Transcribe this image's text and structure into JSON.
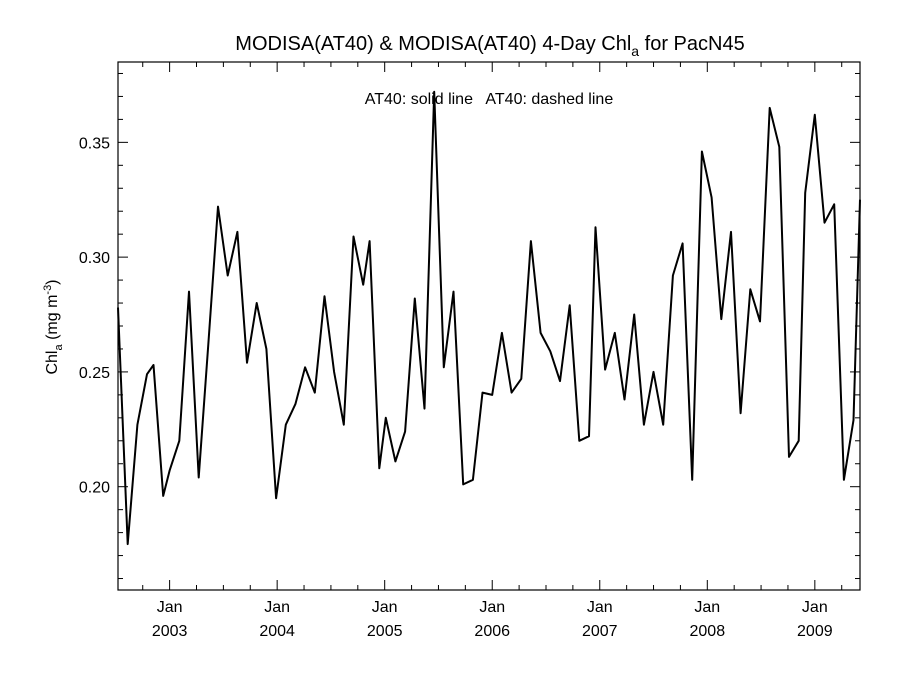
{
  "chart_data": {
    "type": "line",
    "title": {
      "main": "MODISA(AT40) & MODISA(AT40) 4-Day Chl",
      "subscript": "a",
      "suffix": " for PacN45"
    },
    "ylabel": {
      "main": "Chl",
      "subscript": "a",
      "units_prefix": " (mg m",
      "units_superscript": "-3",
      "units_suffix": ")"
    },
    "annotation": "AT40: solid line   AT40: dashed line",
    "xlim": [
      2002.52,
      2009.42
    ],
    "ylim": [
      0.155,
      0.385
    ],
    "yticks": [
      0.2,
      0.25,
      0.3,
      0.35
    ],
    "ytick_labels": [
      "0.20",
      "0.25",
      "0.30",
      "0.35"
    ],
    "xticks": [
      {
        "x": 2003.0,
        "month": "Jan",
        "year": "2003"
      },
      {
        "x": 2004.0,
        "month": "Jan",
        "year": "2004"
      },
      {
        "x": 2005.0,
        "month": "Jan",
        "year": "2005"
      },
      {
        "x": 2006.0,
        "month": "Jan",
        "year": "2006"
      },
      {
        "x": 2007.0,
        "month": "Jan",
        "year": "2007"
      },
      {
        "x": 2008.0,
        "month": "Jan",
        "year": "2008"
      },
      {
        "x": 2009.0,
        "month": "Jan",
        "year": "2009"
      }
    ],
    "grid": false,
    "series": [
      {
        "style": "solid",
        "color": "#000000",
        "x": [
          2002.52,
          2002.61,
          2002.7,
          2002.79,
          2002.85,
          2002.94,
          2003.0,
          2003.09,
          2003.18,
          2003.27,
          2003.36,
          2003.45,
          2003.54,
          2003.63,
          2003.72,
          2003.81,
          2003.9,
          2003.99,
          2004.08,
          2004.17,
          2004.26,
          2004.35,
          2004.44,
          2004.53,
          2004.62,
          2004.71,
          2004.8,
          2004.86,
          2004.95,
          2005.01,
          2005.1,
          2005.19,
          2005.28,
          2005.37,
          2005.46,
          2005.55,
          2005.64,
          2005.73,
          2005.82,
          2005.91,
          2006.0,
          2006.09,
          2006.18,
          2006.27,
          2006.36,
          2006.45,
          2006.54,
          2006.63,
          2006.72,
          2006.81,
          2006.9,
          2006.96,
          2007.05,
          2007.14,
          2007.23,
          2007.32,
          2007.41,
          2007.5,
          2007.59,
          2007.68,
          2007.77,
          2007.86,
          2007.95,
          2008.04,
          2008.13,
          2008.22,
          2008.31,
          2008.4,
          2008.49,
          2008.58,
          2008.67,
          2008.76,
          2008.85,
          2008.91,
          2009.0,
          2009.09,
          2009.18,
          2009.27,
          2009.36,
          2009.42
        ],
        "y": [
          0.278,
          0.175,
          0.227,
          0.249,
          0.253,
          0.196,
          0.207,
          0.22,
          0.285,
          0.204,
          0.262,
          0.322,
          0.292,
          0.311,
          0.254,
          0.28,
          0.26,
          0.195,
          0.227,
          0.236,
          0.252,
          0.241,
          0.283,
          0.25,
          0.227,
          0.309,
          0.288,
          0.307,
          0.208,
          0.23,
          0.211,
          0.224,
          0.282,
          0.234,
          0.372,
          0.252,
          0.285,
          0.201,
          0.203,
          0.241,
          0.24,
          0.267,
          0.241,
          0.247,
          0.307,
          0.267,
          0.259,
          0.246,
          0.279,
          0.22,
          0.222,
          0.313,
          0.251,
          0.267,
          0.238,
          0.275,
          0.227,
          0.25,
          0.227,
          0.292,
          0.306,
          0.203,
          0.346,
          0.326,
          0.273,
          0.311,
          0.232,
          0.286,
          0.272,
          0.365,
          0.348,
          0.213,
          0.22,
          0.328,
          0.362,
          0.315,
          0.323,
          0.203,
          0.229,
          0.325
        ]
      }
    ]
  }
}
